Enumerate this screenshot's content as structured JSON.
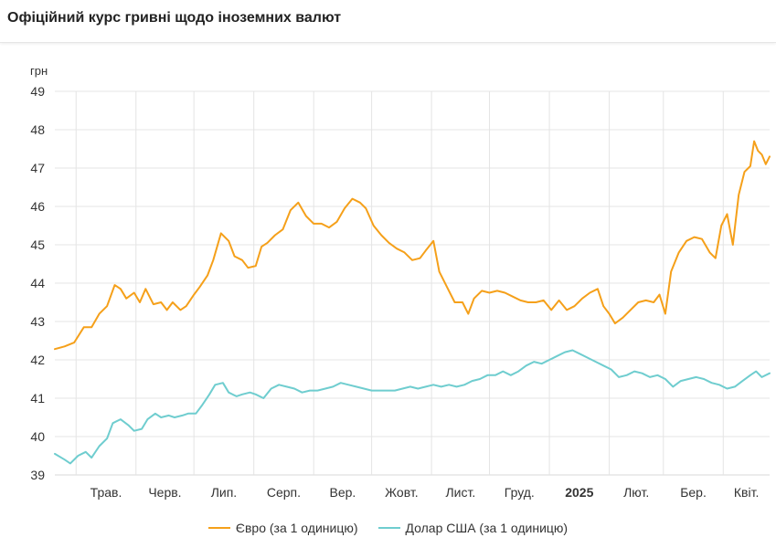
{
  "header": {
    "title": "Офіційний курс гривні щодо іноземних валют"
  },
  "chart_data": {
    "type": "line",
    "unit_label": "грн",
    "ylim": [
      39,
      49
    ],
    "yticks": [
      39,
      40,
      41,
      42,
      43,
      44,
      45,
      46,
      47,
      48,
      49
    ],
    "xlim": [
      "2024-04-20",
      "2025-04-25"
    ],
    "x_ticks": [
      {
        "date": "2024-05-01",
        "label": "Трав.",
        "bold": false
      },
      {
        "date": "2024-06-01",
        "label": "Черв.",
        "bold": false
      },
      {
        "date": "2024-07-01",
        "label": "Лип.",
        "bold": false
      },
      {
        "date": "2024-08-01",
        "label": "Серп.",
        "bold": false
      },
      {
        "date": "2024-09-01",
        "label": "Вер.",
        "bold": false
      },
      {
        "date": "2024-10-01",
        "label": "Жовт.",
        "bold": false
      },
      {
        "date": "2024-11-01",
        "label": "Лист.",
        "bold": false
      },
      {
        "date": "2024-12-01",
        "label": "Груд.",
        "bold": false
      },
      {
        "date": "2025-01-01",
        "label": "2025",
        "bold": true
      },
      {
        "date": "2025-02-01",
        "label": "Лют.",
        "bold": false
      },
      {
        "date": "2025-03-01",
        "label": "Бер.",
        "bold": false
      },
      {
        "date": "2025-04-01",
        "label": "Квіт.",
        "bold": false
      }
    ],
    "grid": true,
    "legend_position": "bottom-center",
    "series": [
      {
        "name": "Євро (за 1 одиницю)",
        "color": "#f5a01a",
        "points": [
          [
            "2024-04-20",
            42.28
          ],
          [
            "2024-04-25",
            42.35
          ],
          [
            "2024-04-30",
            42.45
          ],
          [
            "2024-05-05",
            42.85
          ],
          [
            "2024-05-09",
            42.85
          ],
          [
            "2024-05-13",
            43.2
          ],
          [
            "2024-05-17",
            43.4
          ],
          [
            "2024-05-21",
            43.95
          ],
          [
            "2024-05-24",
            43.85
          ],
          [
            "2024-05-27",
            43.6
          ],
          [
            "2024-05-31",
            43.75
          ],
          [
            "2024-06-03",
            43.5
          ],
          [
            "2024-06-06",
            43.85
          ],
          [
            "2024-06-10",
            43.45
          ],
          [
            "2024-06-14",
            43.5
          ],
          [
            "2024-06-17",
            43.3
          ],
          [
            "2024-06-20",
            43.5
          ],
          [
            "2024-06-24",
            43.3
          ],
          [
            "2024-06-27",
            43.4
          ],
          [
            "2024-07-01",
            43.7
          ],
          [
            "2024-07-04",
            43.9
          ],
          [
            "2024-07-08",
            44.2
          ],
          [
            "2024-07-11",
            44.6
          ],
          [
            "2024-07-15",
            45.3
          ],
          [
            "2024-07-19",
            45.1
          ],
          [
            "2024-07-22",
            44.7
          ],
          [
            "2024-07-26",
            44.6
          ],
          [
            "2024-07-29",
            44.4
          ],
          [
            "2024-08-02",
            44.45
          ],
          [
            "2024-08-05",
            44.95
          ],
          [
            "2024-08-08",
            45.05
          ],
          [
            "2024-08-12",
            45.25
          ],
          [
            "2024-08-16",
            45.4
          ],
          [
            "2024-08-20",
            45.9
          ],
          [
            "2024-08-24",
            46.1
          ],
          [
            "2024-08-28",
            45.75
          ],
          [
            "2024-09-01",
            45.55
          ],
          [
            "2024-09-05",
            45.55
          ],
          [
            "2024-09-09",
            45.45
          ],
          [
            "2024-09-13",
            45.6
          ],
          [
            "2024-09-17",
            45.95
          ],
          [
            "2024-09-21",
            46.2
          ],
          [
            "2024-09-25",
            46.1
          ],
          [
            "2024-09-28",
            45.95
          ],
          [
            "2024-10-02",
            45.5
          ],
          [
            "2024-10-06",
            45.25
          ],
          [
            "2024-10-10",
            45.05
          ],
          [
            "2024-10-14",
            44.9
          ],
          [
            "2024-10-18",
            44.8
          ],
          [
            "2024-10-22",
            44.6
          ],
          [
            "2024-10-26",
            44.65
          ],
          [
            "2024-10-29",
            44.85
          ],
          [
            "2024-11-02",
            45.1
          ],
          [
            "2024-11-05",
            44.3
          ],
          [
            "2024-11-09",
            43.9
          ],
          [
            "2024-11-13",
            43.5
          ],
          [
            "2024-11-17",
            43.5
          ],
          [
            "2024-11-20",
            43.2
          ],
          [
            "2024-11-23",
            43.6
          ],
          [
            "2024-11-27",
            43.8
          ],
          [
            "2024-12-01",
            43.75
          ],
          [
            "2024-12-05",
            43.8
          ],
          [
            "2024-12-09",
            43.75
          ],
          [
            "2024-12-13",
            43.65
          ],
          [
            "2024-12-17",
            43.55
          ],
          [
            "2024-12-21",
            43.5
          ],
          [
            "2024-12-25",
            43.5
          ],
          [
            "2024-12-29",
            43.55
          ],
          [
            "2025-01-02",
            43.3
          ],
          [
            "2025-01-06",
            43.55
          ],
          [
            "2025-01-10",
            43.3
          ],
          [
            "2025-01-14",
            43.4
          ],
          [
            "2025-01-18",
            43.6
          ],
          [
            "2025-01-22",
            43.75
          ],
          [
            "2025-01-26",
            43.85
          ],
          [
            "2025-01-29",
            43.4
          ],
          [
            "2025-02-01",
            43.2
          ],
          [
            "2025-02-04",
            42.95
          ],
          [
            "2025-02-08",
            43.1
          ],
          [
            "2025-02-12",
            43.3
          ],
          [
            "2025-02-16",
            43.5
          ],
          [
            "2025-02-20",
            43.55
          ],
          [
            "2025-02-24",
            43.5
          ],
          [
            "2025-02-27",
            43.7
          ],
          [
            "2025-03-02",
            43.2
          ],
          [
            "2025-03-05",
            44.3
          ],
          [
            "2025-03-09",
            44.8
          ],
          [
            "2025-03-13",
            45.1
          ],
          [
            "2025-03-17",
            45.2
          ],
          [
            "2025-03-21",
            45.15
          ],
          [
            "2025-03-25",
            44.8
          ],
          [
            "2025-03-28",
            44.65
          ],
          [
            "2025-03-31",
            45.5
          ],
          [
            "2025-04-03",
            45.8
          ],
          [
            "2025-04-06",
            45.0
          ],
          [
            "2025-04-09",
            46.3
          ],
          [
            "2025-04-12",
            46.9
          ],
          [
            "2025-04-15",
            47.05
          ],
          [
            "2025-04-17",
            47.7
          ],
          [
            "2025-04-19",
            47.45
          ],
          [
            "2025-04-21",
            47.35
          ],
          [
            "2025-04-23",
            47.1
          ],
          [
            "2025-04-25",
            47.3
          ]
        ]
      },
      {
        "name": "Долар США (за 1 одиницю)",
        "color": "#6fcdcf",
        "points": [
          [
            "2024-04-20",
            39.55
          ],
          [
            "2024-04-25",
            39.4
          ],
          [
            "2024-04-28",
            39.3
          ],
          [
            "2024-05-02",
            39.5
          ],
          [
            "2024-05-06",
            39.6
          ],
          [
            "2024-05-09",
            39.45
          ],
          [
            "2024-05-13",
            39.75
          ],
          [
            "2024-05-17",
            39.95
          ],
          [
            "2024-05-20",
            40.35
          ],
          [
            "2024-05-24",
            40.45
          ],
          [
            "2024-05-28",
            40.3
          ],
          [
            "2024-05-31",
            40.15
          ],
          [
            "2024-06-04",
            40.2
          ],
          [
            "2024-06-07",
            40.45
          ],
          [
            "2024-06-11",
            40.6
          ],
          [
            "2024-06-14",
            40.5
          ],
          [
            "2024-06-18",
            40.55
          ],
          [
            "2024-06-21",
            40.5
          ],
          [
            "2024-06-25",
            40.55
          ],
          [
            "2024-06-28",
            40.6
          ],
          [
            "2024-07-02",
            40.6
          ],
          [
            "2024-07-05",
            40.8
          ],
          [
            "2024-07-09",
            41.1
          ],
          [
            "2024-07-12",
            41.35
          ],
          [
            "2024-07-16",
            41.4
          ],
          [
            "2024-07-19",
            41.15
          ],
          [
            "2024-07-23",
            41.05
          ],
          [
            "2024-07-26",
            41.1
          ],
          [
            "2024-07-30",
            41.15
          ],
          [
            "2024-08-02",
            41.1
          ],
          [
            "2024-08-06",
            41.0
          ],
          [
            "2024-08-10",
            41.25
          ],
          [
            "2024-08-14",
            41.35
          ],
          [
            "2024-08-18",
            41.3
          ],
          [
            "2024-08-22",
            41.25
          ],
          [
            "2024-08-26",
            41.15
          ],
          [
            "2024-08-30",
            41.2
          ],
          [
            "2024-09-03",
            41.2
          ],
          [
            "2024-09-07",
            41.25
          ],
          [
            "2024-09-11",
            41.3
          ],
          [
            "2024-09-15",
            41.4
          ],
          [
            "2024-09-19",
            41.35
          ],
          [
            "2024-09-23",
            41.3
          ],
          [
            "2024-09-27",
            41.25
          ],
          [
            "2024-10-01",
            41.2
          ],
          [
            "2024-10-05",
            41.2
          ],
          [
            "2024-10-09",
            41.2
          ],
          [
            "2024-10-13",
            41.2
          ],
          [
            "2024-10-17",
            41.25
          ],
          [
            "2024-10-21",
            41.3
          ],
          [
            "2024-10-25",
            41.25
          ],
          [
            "2024-10-29",
            41.3
          ],
          [
            "2024-11-02",
            41.35
          ],
          [
            "2024-11-06",
            41.3
          ],
          [
            "2024-11-10",
            41.35
          ],
          [
            "2024-11-14",
            41.3
          ],
          [
            "2024-11-18",
            41.35
          ],
          [
            "2024-11-22",
            41.45
          ],
          [
            "2024-11-26",
            41.5
          ],
          [
            "2024-11-30",
            41.6
          ],
          [
            "2024-12-04",
            41.6
          ],
          [
            "2024-12-08",
            41.7
          ],
          [
            "2024-12-12",
            41.6
          ],
          [
            "2024-12-16",
            41.7
          ],
          [
            "2024-12-20",
            41.85
          ],
          [
            "2024-12-24",
            41.95
          ],
          [
            "2024-12-28",
            41.9
          ],
          [
            "2025-01-01",
            42.0
          ],
          [
            "2025-01-05",
            42.1
          ],
          [
            "2025-01-09",
            42.2
          ],
          [
            "2025-01-13",
            42.25
          ],
          [
            "2025-01-17",
            42.15
          ],
          [
            "2025-01-21",
            42.05
          ],
          [
            "2025-01-25",
            41.95
          ],
          [
            "2025-01-29",
            41.85
          ],
          [
            "2025-02-02",
            41.75
          ],
          [
            "2025-02-06",
            41.55
          ],
          [
            "2025-02-10",
            41.6
          ],
          [
            "2025-02-14",
            41.7
          ],
          [
            "2025-02-18",
            41.65
          ],
          [
            "2025-02-22",
            41.55
          ],
          [
            "2025-02-26",
            41.6
          ],
          [
            "2025-03-02",
            41.5
          ],
          [
            "2025-03-06",
            41.3
          ],
          [
            "2025-03-10",
            41.45
          ],
          [
            "2025-03-14",
            41.5
          ],
          [
            "2025-03-18",
            41.55
          ],
          [
            "2025-03-22",
            41.5
          ],
          [
            "2025-03-26",
            41.4
          ],
          [
            "2025-03-30",
            41.35
          ],
          [
            "2025-04-03",
            41.25
          ],
          [
            "2025-04-07",
            41.3
          ],
          [
            "2025-04-11",
            41.45
          ],
          [
            "2025-04-15",
            41.6
          ],
          [
            "2025-04-18",
            41.7
          ],
          [
            "2025-04-21",
            41.55
          ],
          [
            "2025-04-25",
            41.65
          ]
        ]
      }
    ]
  }
}
